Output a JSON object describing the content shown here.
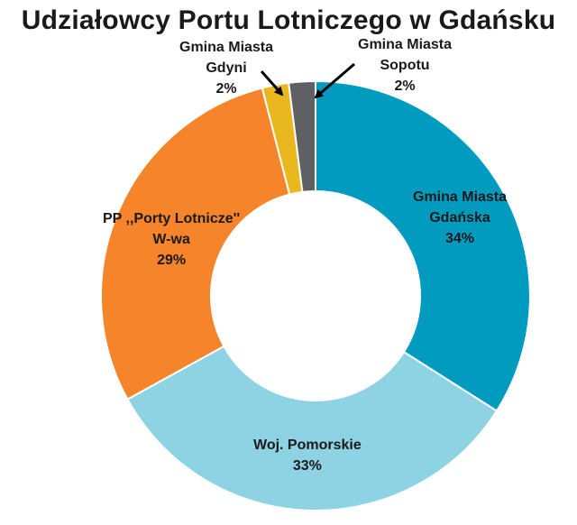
{
  "chart_data": {
    "type": "pie",
    "donut": true,
    "title": "Udziałowcy Portu Lotniczego w Gdańsku",
    "slices": [
      {
        "lines": [
          "Gmina Miasta",
          "Gdańska"
        ],
        "label": "Gmina Miasta Gdańska",
        "value": 34,
        "value_label": "34%",
        "color": "#009bbf"
      },
      {
        "lines": [
          "Woj. Pomorskie"
        ],
        "label": "Woj. Pomorskie",
        "value": 33,
        "value_label": "33%",
        "color": "#8dd3e3"
      },
      {
        "lines": [
          "PP ,,Porty Lotnicze''",
          "W-wa"
        ],
        "label": "PP ,,Porty Lotnicze'' W-wa",
        "value": 29,
        "value_label": "29%",
        "color": "#f5842a"
      },
      {
        "lines": [
          "Gmina Miasta",
          "Gdyni"
        ],
        "label": "Gmina Miasta Gdyni",
        "value": 2,
        "value_label": "2%",
        "color": "#e8b81e"
      },
      {
        "lines": [
          "Gmina Miasta",
          "Sopotu"
        ],
        "label": "Gmina Miasta Sopotu",
        "value": 2,
        "value_label": "2%",
        "color": "#5f6063"
      }
    ],
    "legend": "none"
  }
}
